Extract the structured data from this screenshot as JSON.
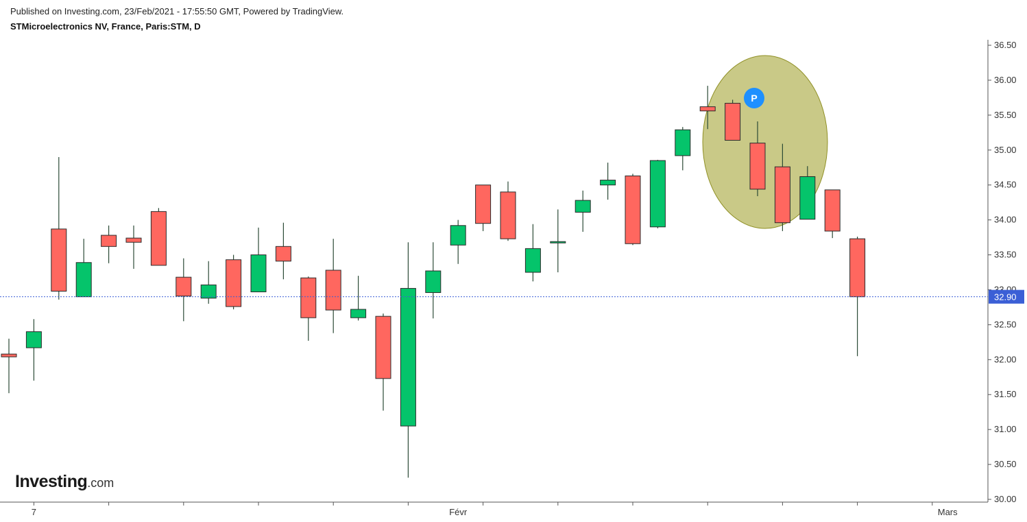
{
  "header": {
    "published": "Published on Investing.com, 23/Feb/2021 - 17:55:50 GMT, Powered by TradingView.",
    "symbol": "STMicroelectronics NV, France, Paris:STM, D"
  },
  "logo": {
    "main": "Investing",
    "suffix": ".com"
  },
  "chart_data": {
    "type": "candlestick",
    "y_ticks": [
      "30.00",
      "30.50",
      "31.00",
      "31.50",
      "32.00",
      "32.50",
      "33.00",
      "33.50",
      "34.00",
      "34.50",
      "35.00",
      "35.50",
      "36.00",
      "36.50"
    ],
    "ylim": [
      30.0,
      36.5
    ],
    "x_labels": [
      {
        "label": "7",
        "index": 1
      },
      {
        "label": "Févr",
        "index": 18
      },
      {
        "label": "Mars",
        "index": 38
      }
    ],
    "last_price": {
      "value": 32.9,
      "label": "32.90",
      "color": "#3b5fd6"
    },
    "colors": {
      "up": "#05c46b",
      "down": "#ff675f",
      "wick": "#2b4a36"
    },
    "candles": [
      {
        "o": 32.08,
        "h": 32.3,
        "l": 31.52,
        "c": 32.04
      },
      {
        "o": 32.17,
        "h": 32.58,
        "l": 31.7,
        "c": 32.4
      },
      {
        "o": 33.87,
        "h": 34.9,
        "l": 32.86,
        "c": 32.98
      },
      {
        "o": 32.9,
        "h": 33.73,
        "l": 32.9,
        "c": 33.39
      },
      {
        "o": 33.78,
        "h": 33.92,
        "l": 33.38,
        "c": 33.62
      },
      {
        "o": 33.74,
        "h": 33.92,
        "l": 33.3,
        "c": 33.68
      },
      {
        "o": 34.12,
        "h": 34.17,
        "l": 33.35,
        "c": 33.35
      },
      {
        "o": 33.18,
        "h": 33.45,
        "l": 32.55,
        "c": 32.91
      },
      {
        "o": 32.88,
        "h": 33.41,
        "l": 32.8,
        "c": 33.07
      },
      {
        "o": 33.43,
        "h": 33.5,
        "l": 32.72,
        "c": 32.76
      },
      {
        "o": 32.97,
        "h": 33.89,
        "l": 32.97,
        "c": 33.5
      },
      {
        "o": 33.62,
        "h": 33.96,
        "l": 33.15,
        "c": 33.41
      },
      {
        "o": 33.17,
        "h": 33.19,
        "l": 32.27,
        "c": 32.6
      },
      {
        "o": 33.28,
        "h": 33.73,
        "l": 32.38,
        "c": 32.71
      },
      {
        "o": 32.6,
        "h": 33.2,
        "l": 32.56,
        "c": 32.72
      },
      {
        "o": 32.62,
        "h": 32.66,
        "l": 31.27,
        "c": 31.73
      },
      {
        "o": 31.05,
        "h": 33.68,
        "l": 30.31,
        "c": 33.02
      },
      {
        "o": 32.96,
        "h": 33.68,
        "l": 32.59,
        "c": 33.27
      },
      {
        "o": 33.64,
        "h": 34.0,
        "l": 33.37,
        "c": 33.92
      },
      {
        "o": 34.5,
        "h": 34.5,
        "l": 33.84,
        "c": 33.95
      },
      {
        "o": 34.4,
        "h": 34.55,
        "l": 33.7,
        "c": 33.73
      },
      {
        "o": 33.25,
        "h": 33.94,
        "l": 33.12,
        "c": 33.59
      },
      {
        "o": 33.68,
        "h": 34.15,
        "l": 33.25,
        "c": 33.69
      },
      {
        "o": 34.11,
        "h": 34.42,
        "l": 33.83,
        "c": 34.28
      },
      {
        "o": 34.5,
        "h": 34.82,
        "l": 34.29,
        "c": 34.57
      },
      {
        "o": 34.63,
        "h": 34.66,
        "l": 33.64,
        "c": 33.66
      },
      {
        "o": 33.9,
        "h": 34.86,
        "l": 33.88,
        "c": 34.85
      },
      {
        "o": 34.92,
        "h": 35.33,
        "l": 34.71,
        "c": 35.29
      },
      {
        "o": 35.62,
        "h": 35.92,
        "l": 35.3,
        "c": 35.56
      },
      {
        "o": 35.67,
        "h": 35.72,
        "l": 35.14,
        "c": 35.14
      },
      {
        "o": 35.1,
        "h": 35.41,
        "l": 34.34,
        "c": 34.44
      },
      {
        "o": 34.76,
        "h": 35.09,
        "l": 33.84,
        "c": 33.96
      },
      {
        "o": 34.01,
        "h": 34.77,
        "l": 34.01,
        "c": 34.62
      },
      {
        "o": 34.43,
        "h": 34.43,
        "l": 33.74,
        "c": 33.84
      },
      {
        "o": 33.73,
        "h": 33.76,
        "l": 32.05,
        "c": 32.9
      }
    ],
    "annotation": {
      "type": "ellipse",
      "label": "P",
      "fill": "#c7c781",
      "stroke": "#8a8a1a",
      "marker_color": "#1e90ff"
    }
  }
}
